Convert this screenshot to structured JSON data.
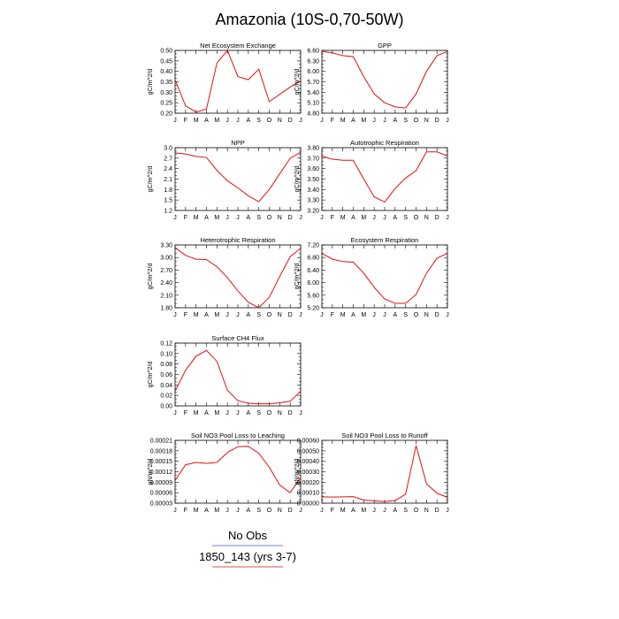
{
  "title": "Amazonia (10S-0,70-50W)",
  "legend": [
    {
      "label": "No Obs",
      "color": "#3a56c4"
    },
    {
      "label": "1850_143 (yrs 3-7)",
      "color": "#e01010"
    }
  ],
  "line_color": "#e01010",
  "chart_data": [
    {
      "type": "line",
      "title": "Net Ecosystem Exchange",
      "ylabel": "gC/m^2/d",
      "x": [
        "J",
        "F",
        "M",
        "A",
        "M",
        "J",
        "J",
        "A",
        "S",
        "O",
        "N",
        "D",
        "J"
      ],
      "values": [
        0.36,
        0.235,
        0.205,
        0.22,
        0.44,
        0.5,
        0.375,
        0.36,
        0.41,
        0.255,
        0.29,
        0.325,
        0.355
      ],
      "ylim": [
        0.2,
        0.5
      ],
      "yticks": [
        "0.20",
        "0.25",
        "0.30",
        "0.35",
        "0.40",
        "0.45",
        "0.50"
      ]
    },
    {
      "type": "line",
      "title": "GPP",
      "ylabel": "gC/m^2/d",
      "x": [
        "J",
        "F",
        "M",
        "A",
        "M",
        "J",
        "J",
        "A",
        "S",
        "O",
        "N",
        "D",
        "J"
      ],
      "values": [
        6.57,
        6.53,
        6.45,
        6.42,
        5.85,
        5.35,
        5.1,
        4.98,
        4.95,
        5.35,
        6.0,
        6.45,
        6.57
      ],
      "ylim": [
        4.8,
        6.6
      ],
      "yticks": [
        "4.80",
        "5.10",
        "5.40",
        "5.70",
        "6.00",
        "6.30",
        "6.60"
      ]
    },
    {
      "type": "line",
      "title": "NPP",
      "ylabel": "gC/m^2/d",
      "x": [
        "J",
        "F",
        "M",
        "A",
        "M",
        "J",
        "J",
        "A",
        "S",
        "O",
        "N",
        "D",
        "J"
      ],
      "values": [
        2.85,
        2.82,
        2.75,
        2.72,
        2.35,
        2.05,
        1.85,
        1.62,
        1.45,
        1.8,
        2.25,
        2.7,
        2.87
      ],
      "ylim": [
        1.2,
        3.0
      ],
      "yticks": [
        "1.2",
        "1.5",
        "1.8",
        "2.1",
        "2.4",
        "2.7",
        "3.0"
      ]
    },
    {
      "type": "line",
      "title": "Autotrophic Respiration",
      "ylabel": "gC/m^2/d",
      "x": [
        "J",
        "F",
        "M",
        "A",
        "M",
        "J",
        "J",
        "A",
        "S",
        "O",
        "N",
        "D",
        "J"
      ],
      "values": [
        3.72,
        3.69,
        3.68,
        3.68,
        3.5,
        3.33,
        3.28,
        3.41,
        3.51,
        3.58,
        3.76,
        3.76,
        3.72
      ],
      "ylim": [
        3.2,
        3.8
      ],
      "yticks": [
        "3.20",
        "3.30",
        "3.40",
        "3.50",
        "3.60",
        "3.70",
        "3.80"
      ]
    },
    {
      "type": "line",
      "title": "Heterotrophic Respiration",
      "ylabel": "gC/m^2/d",
      "x": [
        "J",
        "F",
        "M",
        "A",
        "M",
        "J",
        "J",
        "A",
        "S",
        "O",
        "N",
        "D",
        "J"
      ],
      "values": [
        3.24,
        3.05,
        2.96,
        2.95,
        2.78,
        2.52,
        2.2,
        1.93,
        1.8,
        2.05,
        2.55,
        3.02,
        3.22
      ],
      "ylim": [
        1.8,
        3.3
      ],
      "yticks": [
        "1.80",
        "2.10",
        "2.40",
        "2.70",
        "3.00",
        "3.30"
      ]
    },
    {
      "type": "line",
      "title": "Ecosystem Respiration",
      "ylabel": "gC/m^2/d",
      "x": [
        "J",
        "F",
        "M",
        "A",
        "M",
        "J",
        "J",
        "A",
        "S",
        "O",
        "N",
        "D",
        "J"
      ],
      "values": [
        6.93,
        6.75,
        6.67,
        6.65,
        6.3,
        5.85,
        5.48,
        5.34,
        5.34,
        5.62,
        6.3,
        6.78,
        6.93
      ],
      "ylim": [
        5.2,
        7.2
      ],
      "yticks": [
        "5.20",
        "5.60",
        "6.00",
        "6.40",
        "6.80",
        "7.20"
      ]
    },
    {
      "type": "line",
      "title": "Surface CH4 Flux",
      "ylabel": "gC/m^2/d",
      "x": [
        "J",
        "F",
        "M",
        "A",
        "M",
        "J",
        "J",
        "A",
        "S",
        "O",
        "N",
        "D",
        "J"
      ],
      "values": [
        0.028,
        0.068,
        0.095,
        0.106,
        0.085,
        0.03,
        0.01,
        0.005,
        0.004,
        0.004,
        0.006,
        0.009,
        0.028
      ],
      "ylim": [
        0.0,
        0.12
      ],
      "yticks": [
        "0.00",
        "0.02",
        "0.04",
        "0.06",
        "0.08",
        "0.10",
        "0.12"
      ]
    },
    {
      "type": "line",
      "title": "Soil NO3 Pool Loss to Leaching",
      "ylabel": "gN/m^2/d",
      "x": [
        "J",
        "F",
        "M",
        "A",
        "M",
        "J",
        "J",
        "A",
        "S",
        "O",
        "N",
        "D",
        "J"
      ],
      "values": [
        9.5e-05,
        0.00014,
        0.000147,
        0.000144,
        0.000147,
        0.000175,
        0.000192,
        0.000193,
        0.000173,
        0.000133,
        8.2e-05,
        6e-05,
        0.000104
      ],
      "ylim": [
        3e-05,
        0.00021
      ],
      "yticks": [
        "0.00003",
        "0.00006",
        "0.00009",
        "0.00012",
        "0.00015",
        "0.00018",
        "0.00021"
      ]
    },
    {
      "type": "line",
      "title": "Soil NO3 Pool Loss to Runoff",
      "ylabel": "gN/m^2/d",
      "x": [
        "J",
        "F",
        "M",
        "A",
        "M",
        "J",
        "J",
        "A",
        "S",
        "O",
        "N",
        "D",
        "J"
      ],
      "values": [
        6e-05,
        5.8e-05,
        6e-05,
        6.2e-05,
        3e-05,
        2.2e-05,
        1.5e-05,
        2.5e-05,
        8.5e-05,
        0.00055,
        0.000185,
        9.5e-05,
        5.5e-05
      ],
      "ylim": [
        0.0,
        0.0006
      ],
      "yticks": [
        "0.00000",
        "0.00010",
        "0.00020",
        "0.00030",
        "0.00040",
        "0.00050",
        "0.00060"
      ]
    }
  ]
}
